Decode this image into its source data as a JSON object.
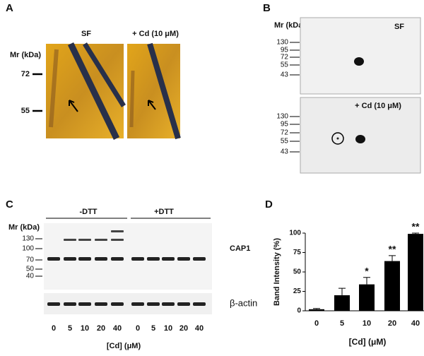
{
  "panel_a": {
    "label": "A",
    "lane_titles": [
      "SF",
      "+ Cd (10 μM)"
    ],
    "mr_title": "Mr (kDa)",
    "markers": [
      "72",
      "55"
    ]
  },
  "panel_b": {
    "label": "B",
    "mr_title": "Mr (kDa)",
    "blots": [
      {
        "title": "SF",
        "markers": [
          "130",
          "95",
          "72",
          "55",
          "43"
        ]
      },
      {
        "title": "+ Cd (10 μM)",
        "markers": [
          "130",
          "95",
          "72",
          "55",
          "43"
        ]
      }
    ]
  },
  "panel_c": {
    "label": "C",
    "conditions": [
      "-DTT",
      "+DTT"
    ],
    "mr_title": "Mr (kDa)",
    "markers": [
      "130",
      "100",
      "70",
      "50",
      "40"
    ],
    "blot_labels": [
      "CAP1",
      "β-actin"
    ],
    "lanes": [
      "0",
      "5",
      "10",
      "20",
      "40",
      "0",
      "5",
      "10",
      "20",
      "40"
    ],
    "x_label": "[Cd] (μM)"
  },
  "chart_data": {
    "type": "bar",
    "label": "D",
    "x_label": "[Cd] (μM)",
    "y_label": "Band Intensity (%)",
    "categories": [
      "0",
      "5",
      "10",
      "20",
      "40"
    ],
    "values": [
      2,
      20,
      34,
      64,
      99
    ],
    "errors": [
      1,
      9,
      9,
      7,
      1
    ],
    "annotations": [
      "",
      "",
      "*",
      "**",
      "**"
    ],
    "color": "#000000",
    "ylim": [
      0,
      100
    ],
    "yticks": [
      0,
      25,
      50,
      75,
      100
    ]
  }
}
